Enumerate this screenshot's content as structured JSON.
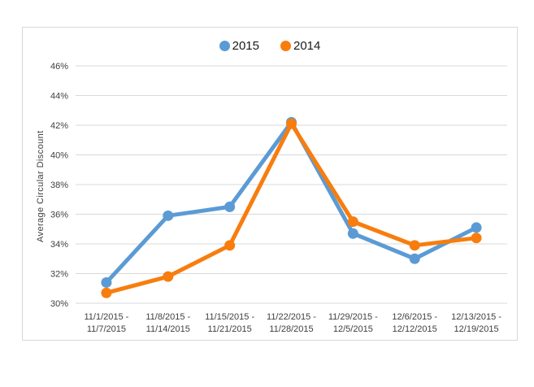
{
  "chart_data": {
    "type": "line",
    "title": "",
    "xlabel": "",
    "ylabel": "Average Circular Discount",
    "categories": [
      "11/1/2015 - 11/7/2015",
      "11/8/2015 - 11/14/2015",
      "11/15/2015 - 11/21/2015",
      "11/22/2015 - 11/28/2015",
      "11/29/2015 - 12/5/2015",
      "12/6/2015 - 12/12/2015",
      "12/13/2015 - 12/19/2015"
    ],
    "series": [
      {
        "name": "2015",
        "color": "#5B9BD5",
        "values": [
          31.4,
          35.9,
          36.5,
          42.2,
          34.7,
          33.0,
          35.1
        ]
      },
      {
        "name": "2014",
        "color": "#F87D0E",
        "values": [
          30.7,
          31.8,
          33.9,
          42.1,
          35.5,
          33.9,
          34.4
        ]
      }
    ],
    "ylim": [
      30,
      46
    ],
    "ytick_step": 2,
    "ytick_suffix": "%",
    "grid": true,
    "legend_position": "top-center",
    "colors": {
      "grid": "#d9d9d9",
      "frame_border": "#d9d9d9",
      "tick_text": "#404040",
      "legend_text": "#1a1a1a"
    }
  }
}
